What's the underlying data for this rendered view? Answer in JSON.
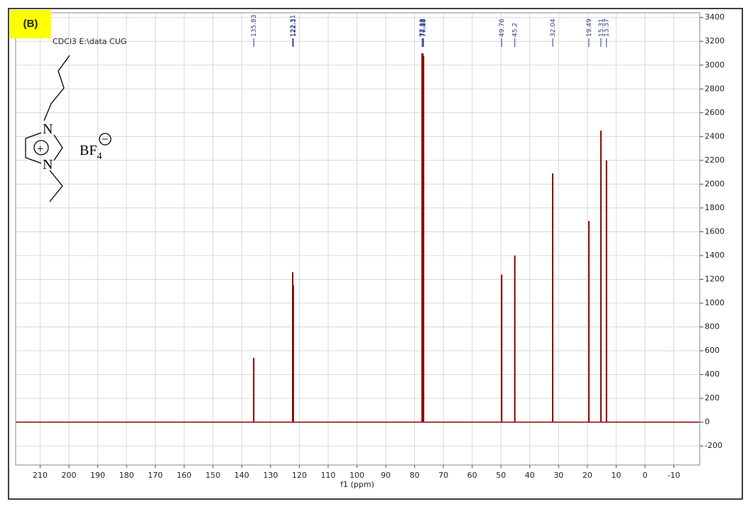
{
  "chart_data": {
    "type": "spectrum",
    "panel_label": "(B)",
    "subtitle": "CDCl3 E:\\data CUG",
    "x_label": "f1 (ppm)",
    "x": [
      135.83,
      122.31,
      122.1,
      77.38,
      77.13,
      76.88,
      49.76,
      45.2,
      32.04,
      19.49,
      15.31,
      13.37
    ],
    "values": [
      540,
      1260,
      1150,
      3100,
      3100,
      3080,
      1240,
      1400,
      2090,
      1690,
      2450,
      2200
    ],
    "color": "#8b0000",
    "xlim": [
      218.5,
      -19
    ],
    "xticks": [
      210,
      200,
      190,
      180,
      170,
      160,
      150,
      140,
      130,
      120,
      110,
      100,
      90,
      80,
      70,
      60,
      50,
      40,
      30,
      20,
      10,
      0,
      -10
    ],
    "ylim": [
      -360,
      3440
    ],
    "yticks": [
      -200,
      0,
      200,
      400,
      600,
      800,
      1000,
      1200,
      1400,
      1600,
      1800,
      2000,
      2200,
      2400,
      2600,
      2800,
      3000,
      3200,
      3400
    ],
    "grid": true,
    "structure": {
      "atom_top": "N",
      "atom_bottom": "N",
      "charge": "+",
      "anion": "BF",
      "anion_subscript": "4",
      "anion_charge": "−"
    }
  }
}
